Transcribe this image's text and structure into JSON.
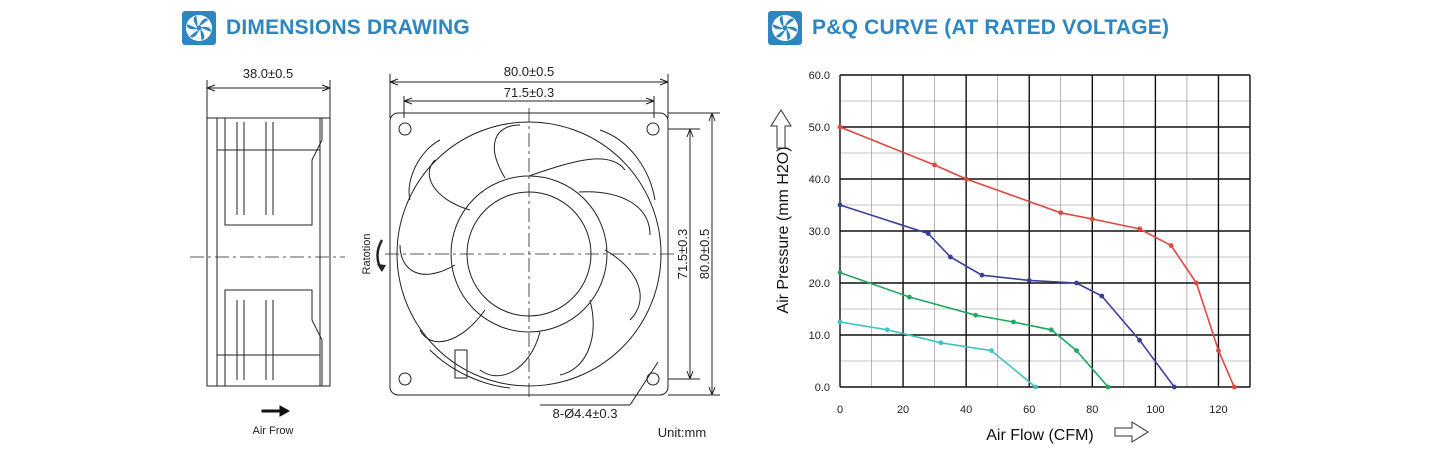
{
  "dimensions": {
    "title": "DIMENSIONS DRAWING",
    "side_width": "38.0±0.5",
    "front_outer": "80.0±0.5",
    "front_inner": "71.5±0.3",
    "vert_inner": "71.5±0.3",
    "vert_outer": "80.0±0.5",
    "holes": "8-Ø4.4±0.3",
    "rotation": "Ratotion",
    "airflow": "Air Frow",
    "unit": "Unit:mm"
  },
  "pq": {
    "title": "P&Q CURVE (AT RATED VOLTAGE)"
  },
  "chart_data": {
    "type": "line",
    "xlabel": "Air Flow (CFM)",
    "ylabel": "Air Pressure (mm H2O)",
    "xlim": [
      0,
      130
    ],
    "ylim": [
      0,
      60
    ],
    "x_ticks": [
      "0",
      "20",
      "40",
      "60",
      "80",
      "100",
      "120"
    ],
    "y_ticks": [
      "0.0",
      "10.0",
      "20.0",
      "30.0",
      "40.0",
      "50.0",
      "60.0"
    ],
    "grid": true,
    "series": [
      {
        "color": "#e0473f",
        "points": [
          [
            0,
            50
          ],
          [
            30,
            42.7
          ],
          [
            40,
            40
          ],
          [
            70,
            33.5
          ],
          [
            80,
            32.3
          ],
          [
            95,
            30.4
          ],
          [
            105,
            27.2
          ],
          [
            113,
            20
          ],
          [
            120,
            7
          ],
          [
            125,
            0
          ]
        ]
      },
      {
        "color": "#3a3f9c",
        "points": [
          [
            0,
            35
          ],
          [
            28,
            29.5
          ],
          [
            35,
            25
          ],
          [
            45,
            21.5
          ],
          [
            60,
            20.5
          ],
          [
            75,
            20
          ],
          [
            83,
            17.5
          ],
          [
            95,
            9
          ],
          [
            106,
            0
          ]
        ]
      },
      {
        "color": "#1fa860",
        "points": [
          [
            0,
            22
          ],
          [
            22,
            17.3
          ],
          [
            43,
            13.8
          ],
          [
            55,
            12.5
          ],
          [
            67,
            11
          ],
          [
            75,
            7
          ],
          [
            85,
            0
          ]
        ]
      },
      {
        "color": "#3fc2c2",
        "points": [
          [
            0,
            12.5
          ],
          [
            15,
            11
          ],
          [
            32,
            8.5
          ],
          [
            48,
            7
          ],
          [
            62,
            0
          ]
        ]
      }
    ]
  }
}
